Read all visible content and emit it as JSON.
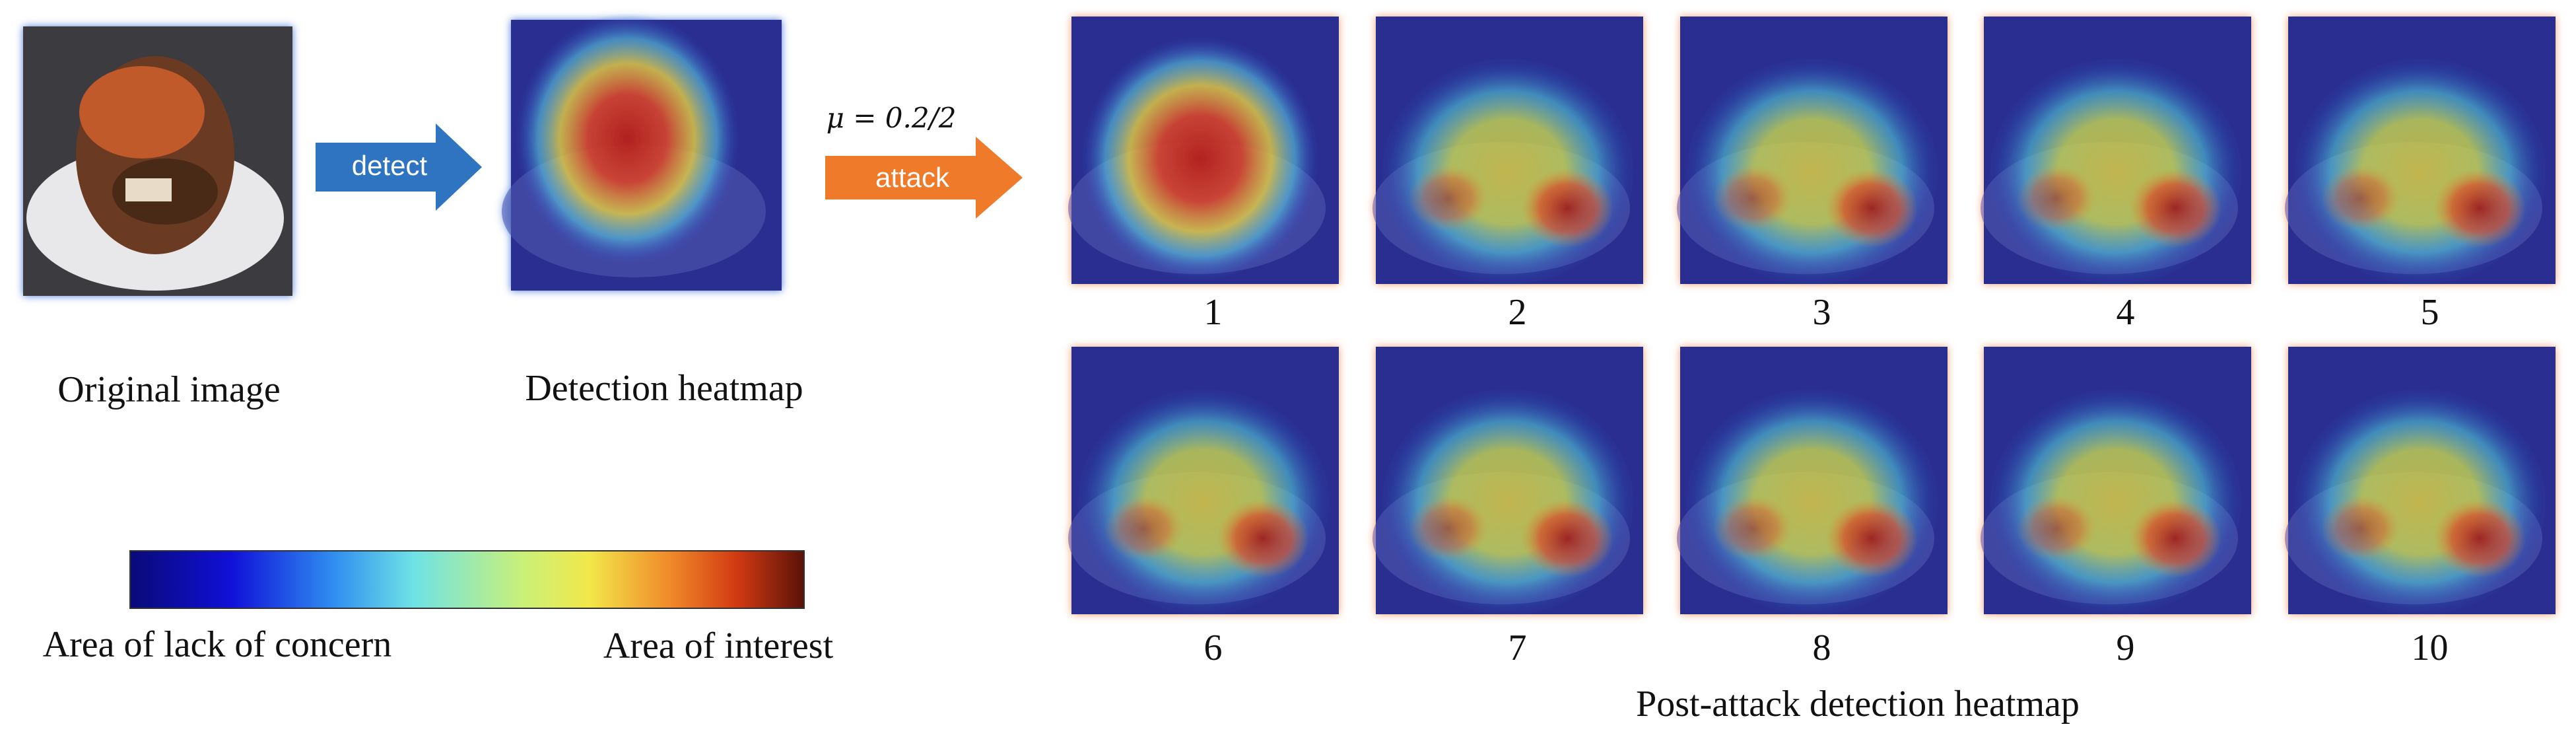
{
  "original_label": "Original image",
  "detection_label": "Detection heatmap",
  "detect_arrow": "detect",
  "attack_arrow": "attack",
  "attack_param": "μ = 0.2/2",
  "colorbar": {
    "low_label": "Area of lack of concern",
    "high_label": "Area of interest"
  },
  "post_attack": {
    "labels": [
      "1",
      "2",
      "3",
      "4",
      "5",
      "6",
      "7",
      "8",
      "9",
      "10"
    ],
    "caption": "Post-attack detection heatmap"
  }
}
